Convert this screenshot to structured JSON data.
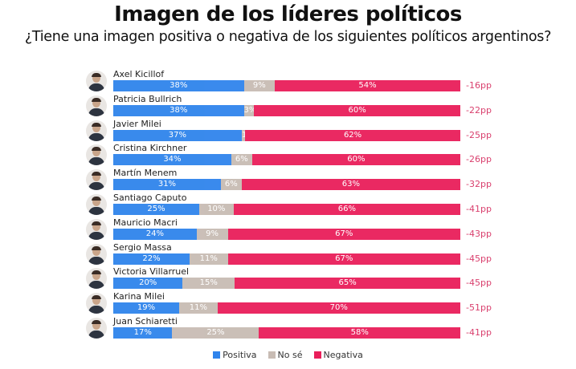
{
  "title": "Imagen de los líderes políticos",
  "subtitle": "¿Tiene una imagen positiva o negativa de los siguientes políticos argentinos?",
  "colors": {
    "positiva": "#2f84ec",
    "no_se": "#c8bcb4",
    "negativa": "#e91e5a"
  },
  "chart_data": {
    "type": "bar",
    "orientation": "horizontal-stacked-100",
    "categories": [
      "Axel Kicillof",
      "Patricia Bullrich",
      "Javier Milei",
      "Cristina Kirchner",
      "Martín Menem",
      "Santiago Caputo",
      "Mauricio Macri",
      "Sergio Massa",
      "Victoria Villarruel",
      "Karina Milei",
      "Juan Schiaretti"
    ],
    "series": [
      {
        "name": "Positiva",
        "values": [
          38,
          38,
          37,
          34,
          31,
          25,
          24,
          22,
          20,
          19,
          17
        ]
      },
      {
        "name": "No sé",
        "values": [
          9,
          3,
          1,
          6,
          6,
          10,
          9,
          11,
          15,
          11,
          25
        ]
      },
      {
        "name": "Negativa",
        "values": [
          54,
          60,
          62,
          60,
          63,
          66,
          67,
          67,
          65,
          70,
          58
        ]
      }
    ],
    "net_labels": [
      "-16pp",
      "-22pp",
      "-25pp",
      "-26pp",
      "-32pp",
      "-41pp",
      "-43pp",
      "-45pp",
      "-45pp",
      "-51pp",
      "-41pp"
    ],
    "legend": {
      "position": "bottom",
      "entries": [
        "Positiva",
        "No sé",
        "Negativa"
      ]
    }
  }
}
